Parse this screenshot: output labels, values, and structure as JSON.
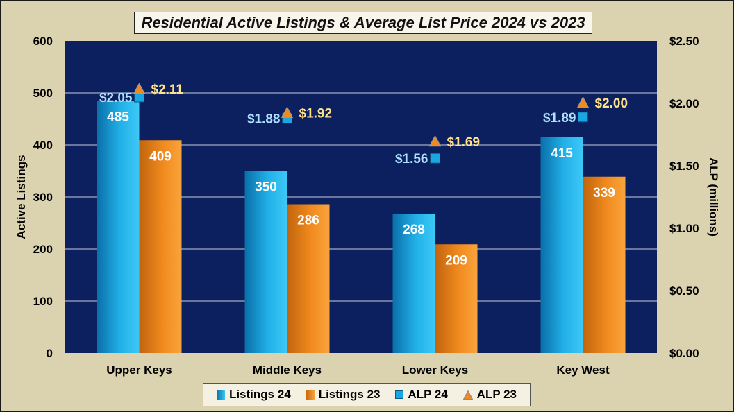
{
  "chart_data": {
    "type": "bar",
    "title": "Residential Active Listings & Average List Price 2024 vs 2023",
    "categories": [
      "Upper Keys",
      "Middle Keys",
      "Lower Keys",
      "Key West"
    ],
    "ylabel": "Active Listings",
    "y2label": "ALP (millions)",
    "ylim": [
      0,
      600
    ],
    "y2lim": [
      0,
      2.5
    ],
    "yticks": [
      "0",
      "100",
      "200",
      "300",
      "400",
      "500",
      "600"
    ],
    "y2ticks": [
      "$0.00",
      "$0.50",
      "$1.00",
      "$1.50",
      "$2.00",
      "$2.50"
    ],
    "series": [
      {
        "name": "Listings 24",
        "kind": "bar",
        "axis": "left",
        "values": [
          485,
          350,
          268,
          415
        ],
        "color": "#1aa6e0"
      },
      {
        "name": "Listings 23",
        "kind": "bar",
        "axis": "left",
        "values": [
          409,
          286,
          209,
          339
        ],
        "color": "#f08a1e"
      },
      {
        "name": "ALP 24",
        "kind": "marker-square",
        "axis": "right",
        "values": [
          2.05,
          1.88,
          1.56,
          1.89
        ],
        "labels": [
          "$2.05",
          "$1.88",
          "$1.56",
          "$1.89"
        ],
        "color": "#1aa6e0"
      },
      {
        "name": "ALP 23",
        "kind": "marker-triangle",
        "axis": "right",
        "values": [
          2.11,
          1.92,
          1.69,
          2.0
        ],
        "labels": [
          "$2.11",
          "$1.92",
          "$1.69",
          "$2.00"
        ],
        "color": "#f08a1e"
      }
    ],
    "grid": true,
    "legend_position": "bottom",
    "colors": {
      "plot_bg": "#0c1f5e",
      "frame_bg": "#dbd2b0",
      "alp24_label": "#aee0ff",
      "alp23_label": "#ffe28a"
    }
  }
}
